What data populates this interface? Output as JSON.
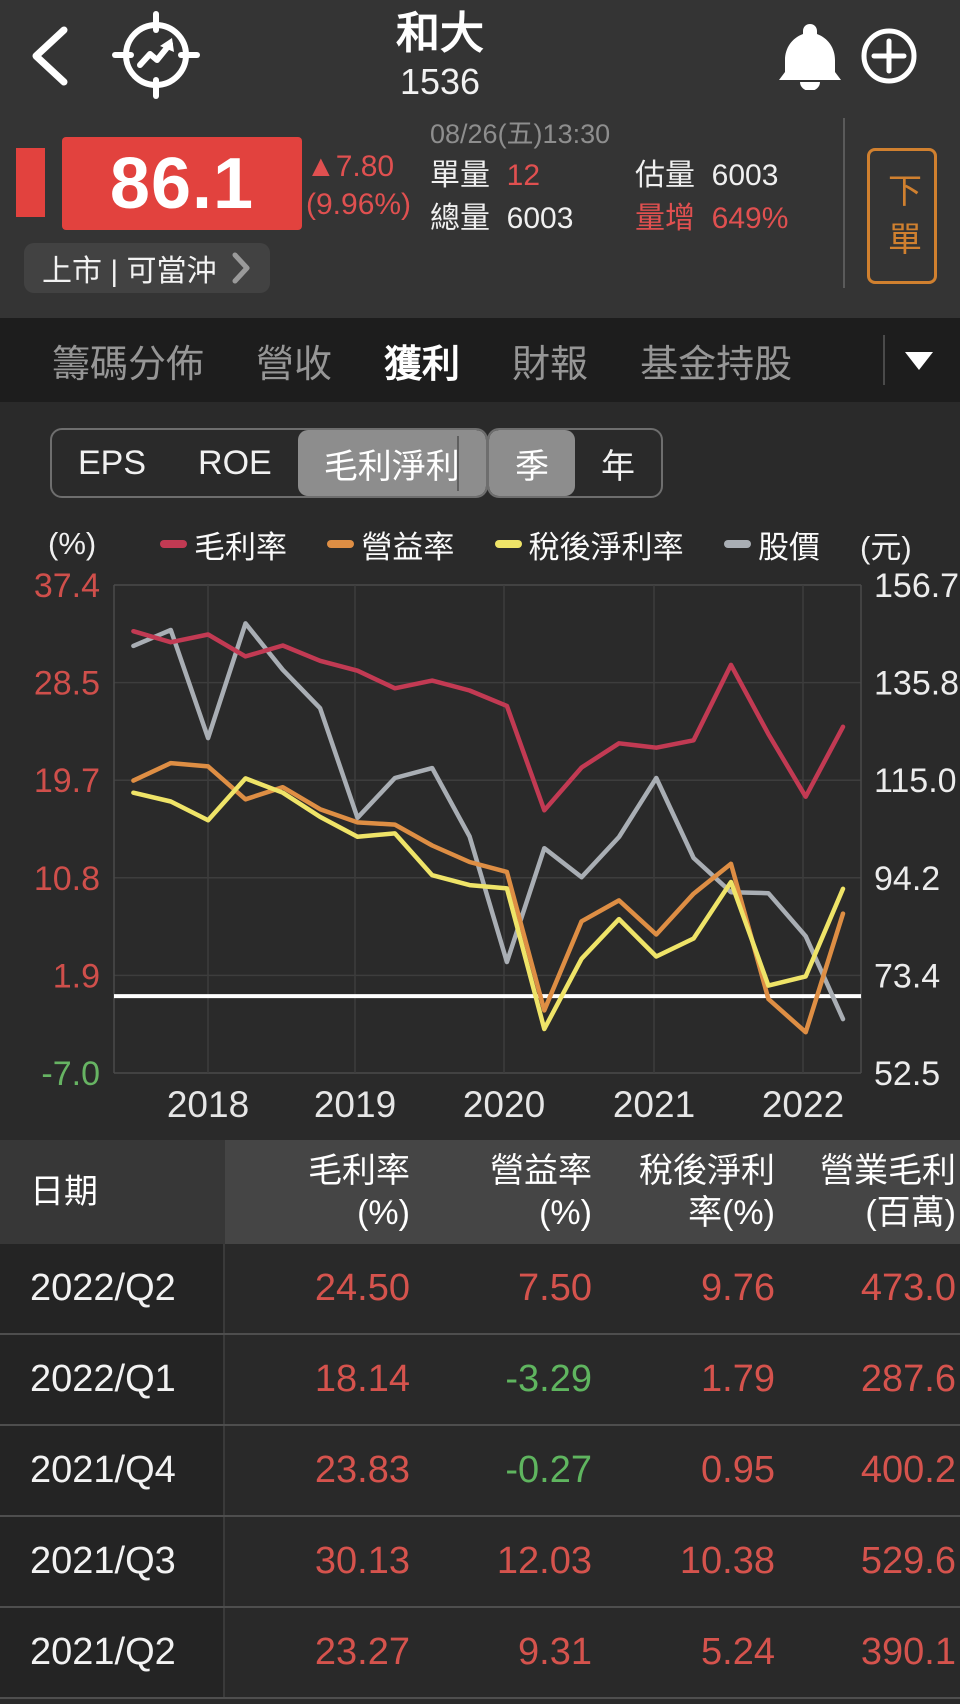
{
  "header": {
    "title": "和大",
    "code": "1536"
  },
  "price": {
    "last": "86.1",
    "change": "▲7.80",
    "change_pct": "(9.96%)",
    "datetime": "08/26(五)13:30",
    "stats": [
      {
        "label": "單量",
        "value": "12",
        "label_red": false,
        "value_red": true
      },
      {
        "label": "估量",
        "value": "6003",
        "label_red": false,
        "value_red": false
      },
      {
        "label": "總量",
        "value": "6003",
        "label_red": false,
        "value_red": false
      },
      {
        "label": "量增",
        "value": "649%",
        "label_red": true,
        "value_red": true
      }
    ],
    "market_pill": "上市 | 可當沖",
    "order_button": "下單",
    "accent_red": "#e2423e",
    "accent_orange": "#d0802f"
  },
  "tabs": {
    "items": [
      {
        "label": "籌碼分佈",
        "active": false
      },
      {
        "label": "營收",
        "active": false
      },
      {
        "label": "獲利",
        "active": true
      },
      {
        "label": "財報",
        "active": false
      },
      {
        "label": "基金持股",
        "active": false
      }
    ]
  },
  "subtabs": {
    "metric": [
      {
        "label": "EPS",
        "active": false
      },
      {
        "label": "ROE",
        "active": false
      },
      {
        "label": "毛利淨利",
        "active": true
      }
    ],
    "period": [
      {
        "label": "季",
        "active": true
      },
      {
        "label": "年",
        "active": false
      }
    ]
  },
  "chart": {
    "left_unit": "(%)",
    "right_unit": "(元)",
    "left_ticks": [
      "37.4",
      "28.5",
      "19.7",
      "10.8",
      "1.9",
      "-7.0"
    ],
    "left_tick_colors": [
      "#cf4f4b",
      "#cf4f4b",
      "#cf4f4b",
      "#cf4f4b",
      "#cf4f4b",
      "#67b463"
    ],
    "right_ticks": [
      "156.7",
      "135.8",
      "115.0",
      "94.2",
      "73.4",
      "52.5"
    ],
    "x_labels": [
      "2018",
      "2019",
      "2020",
      "2021",
      "2022"
    ],
    "chart_data": {
      "type": "line",
      "x": [
        "2017/Q3",
        "2017/Q4",
        "2018/Q1",
        "2018/Q2",
        "2018/Q3",
        "2018/Q4",
        "2019/Q1",
        "2019/Q2",
        "2019/Q3",
        "2019/Q4",
        "2020/Q1",
        "2020/Q2",
        "2020/Q3",
        "2020/Q4",
        "2021/Q1",
        "2021/Q2",
        "2021/Q3",
        "2021/Q4",
        "2022/Q1",
        "2022/Q2"
      ],
      "series": [
        {
          "name": "毛利率",
          "axis": "left",
          "color": "#c23a53",
          "values": [
            33.2,
            32.2,
            32.9,
            30.9,
            31.9,
            30.5,
            29.6,
            28.0,
            28.7,
            27.8,
            26.4,
            16.9,
            20.8,
            23.0,
            22.6,
            23.27,
            30.13,
            23.83,
            18.14,
            24.5
          ]
        },
        {
          "name": "營益率",
          "axis": "left",
          "color": "#de8e44",
          "values": [
            19.6,
            21.2,
            20.9,
            17.9,
            19.0,
            17.0,
            15.8,
            15.6,
            13.7,
            12.2,
            11.3,
            -1.3,
            6.8,
            8.7,
            5.6,
            9.31,
            12.03,
            -0.27,
            -3.29,
            7.5
          ]
        },
        {
          "name": "稅後淨利率",
          "axis": "left",
          "color": "#efe468",
          "values": [
            18.5,
            17.7,
            16.0,
            19.8,
            18.5,
            16.3,
            14.5,
            14.8,
            11.0,
            10.1,
            9.8,
            -3.0,
            3.4,
            7.0,
            3.6,
            5.24,
            10.38,
            0.95,
            1.79,
            9.76
          ]
        },
        {
          "name": "股價",
          "axis": "right",
          "color": "#a9aeb4",
          "values": [
            143.7,
            147.1,
            124.0,
            148.5,
            138.6,
            130.4,
            107.0,
            115.5,
            117.6,
            103.0,
            76.2,
            100.5,
            94.3,
            102.9,
            115.5,
            98.4,
            91.1,
            90.9,
            81.7,
            64.0
          ]
        }
      ],
      "left_axis": {
        "min": -7.0,
        "max": 37.4
      },
      "right_axis": {
        "min": 52.5,
        "max": 156.7
      },
      "zero_line": 0,
      "grid": true,
      "legend_position": "top"
    }
  },
  "table": {
    "columns": [
      {
        "line1": "日期",
        "line2": ""
      },
      {
        "line1": "毛利率",
        "line2": "(%)"
      },
      {
        "line1": "營益率",
        "line2": "(%)"
      },
      {
        "line1": "稅後淨利",
        "line2": "率(%)"
      },
      {
        "line1": "營業毛利",
        "line2": "(百萬)"
      }
    ],
    "rows": [
      {
        "date": "2022/Q2",
        "values": [
          "24.50",
          "7.50",
          "9.76",
          "473.0"
        ]
      },
      {
        "date": "2022/Q1",
        "values": [
          "18.14",
          "-3.29",
          "1.79",
          "287.6"
        ]
      },
      {
        "date": "2021/Q4",
        "values": [
          "23.83",
          "-0.27",
          "0.95",
          "400.2"
        ]
      },
      {
        "date": "2021/Q3",
        "values": [
          "30.13",
          "12.03",
          "10.38",
          "529.6"
        ]
      },
      {
        "date": "2021/Q2",
        "values": [
          "23.27",
          "9.31",
          "5.24",
          "390.1"
        ]
      }
    ],
    "positive_color": "#d5534d",
    "negative_color": "#5fb55f"
  }
}
